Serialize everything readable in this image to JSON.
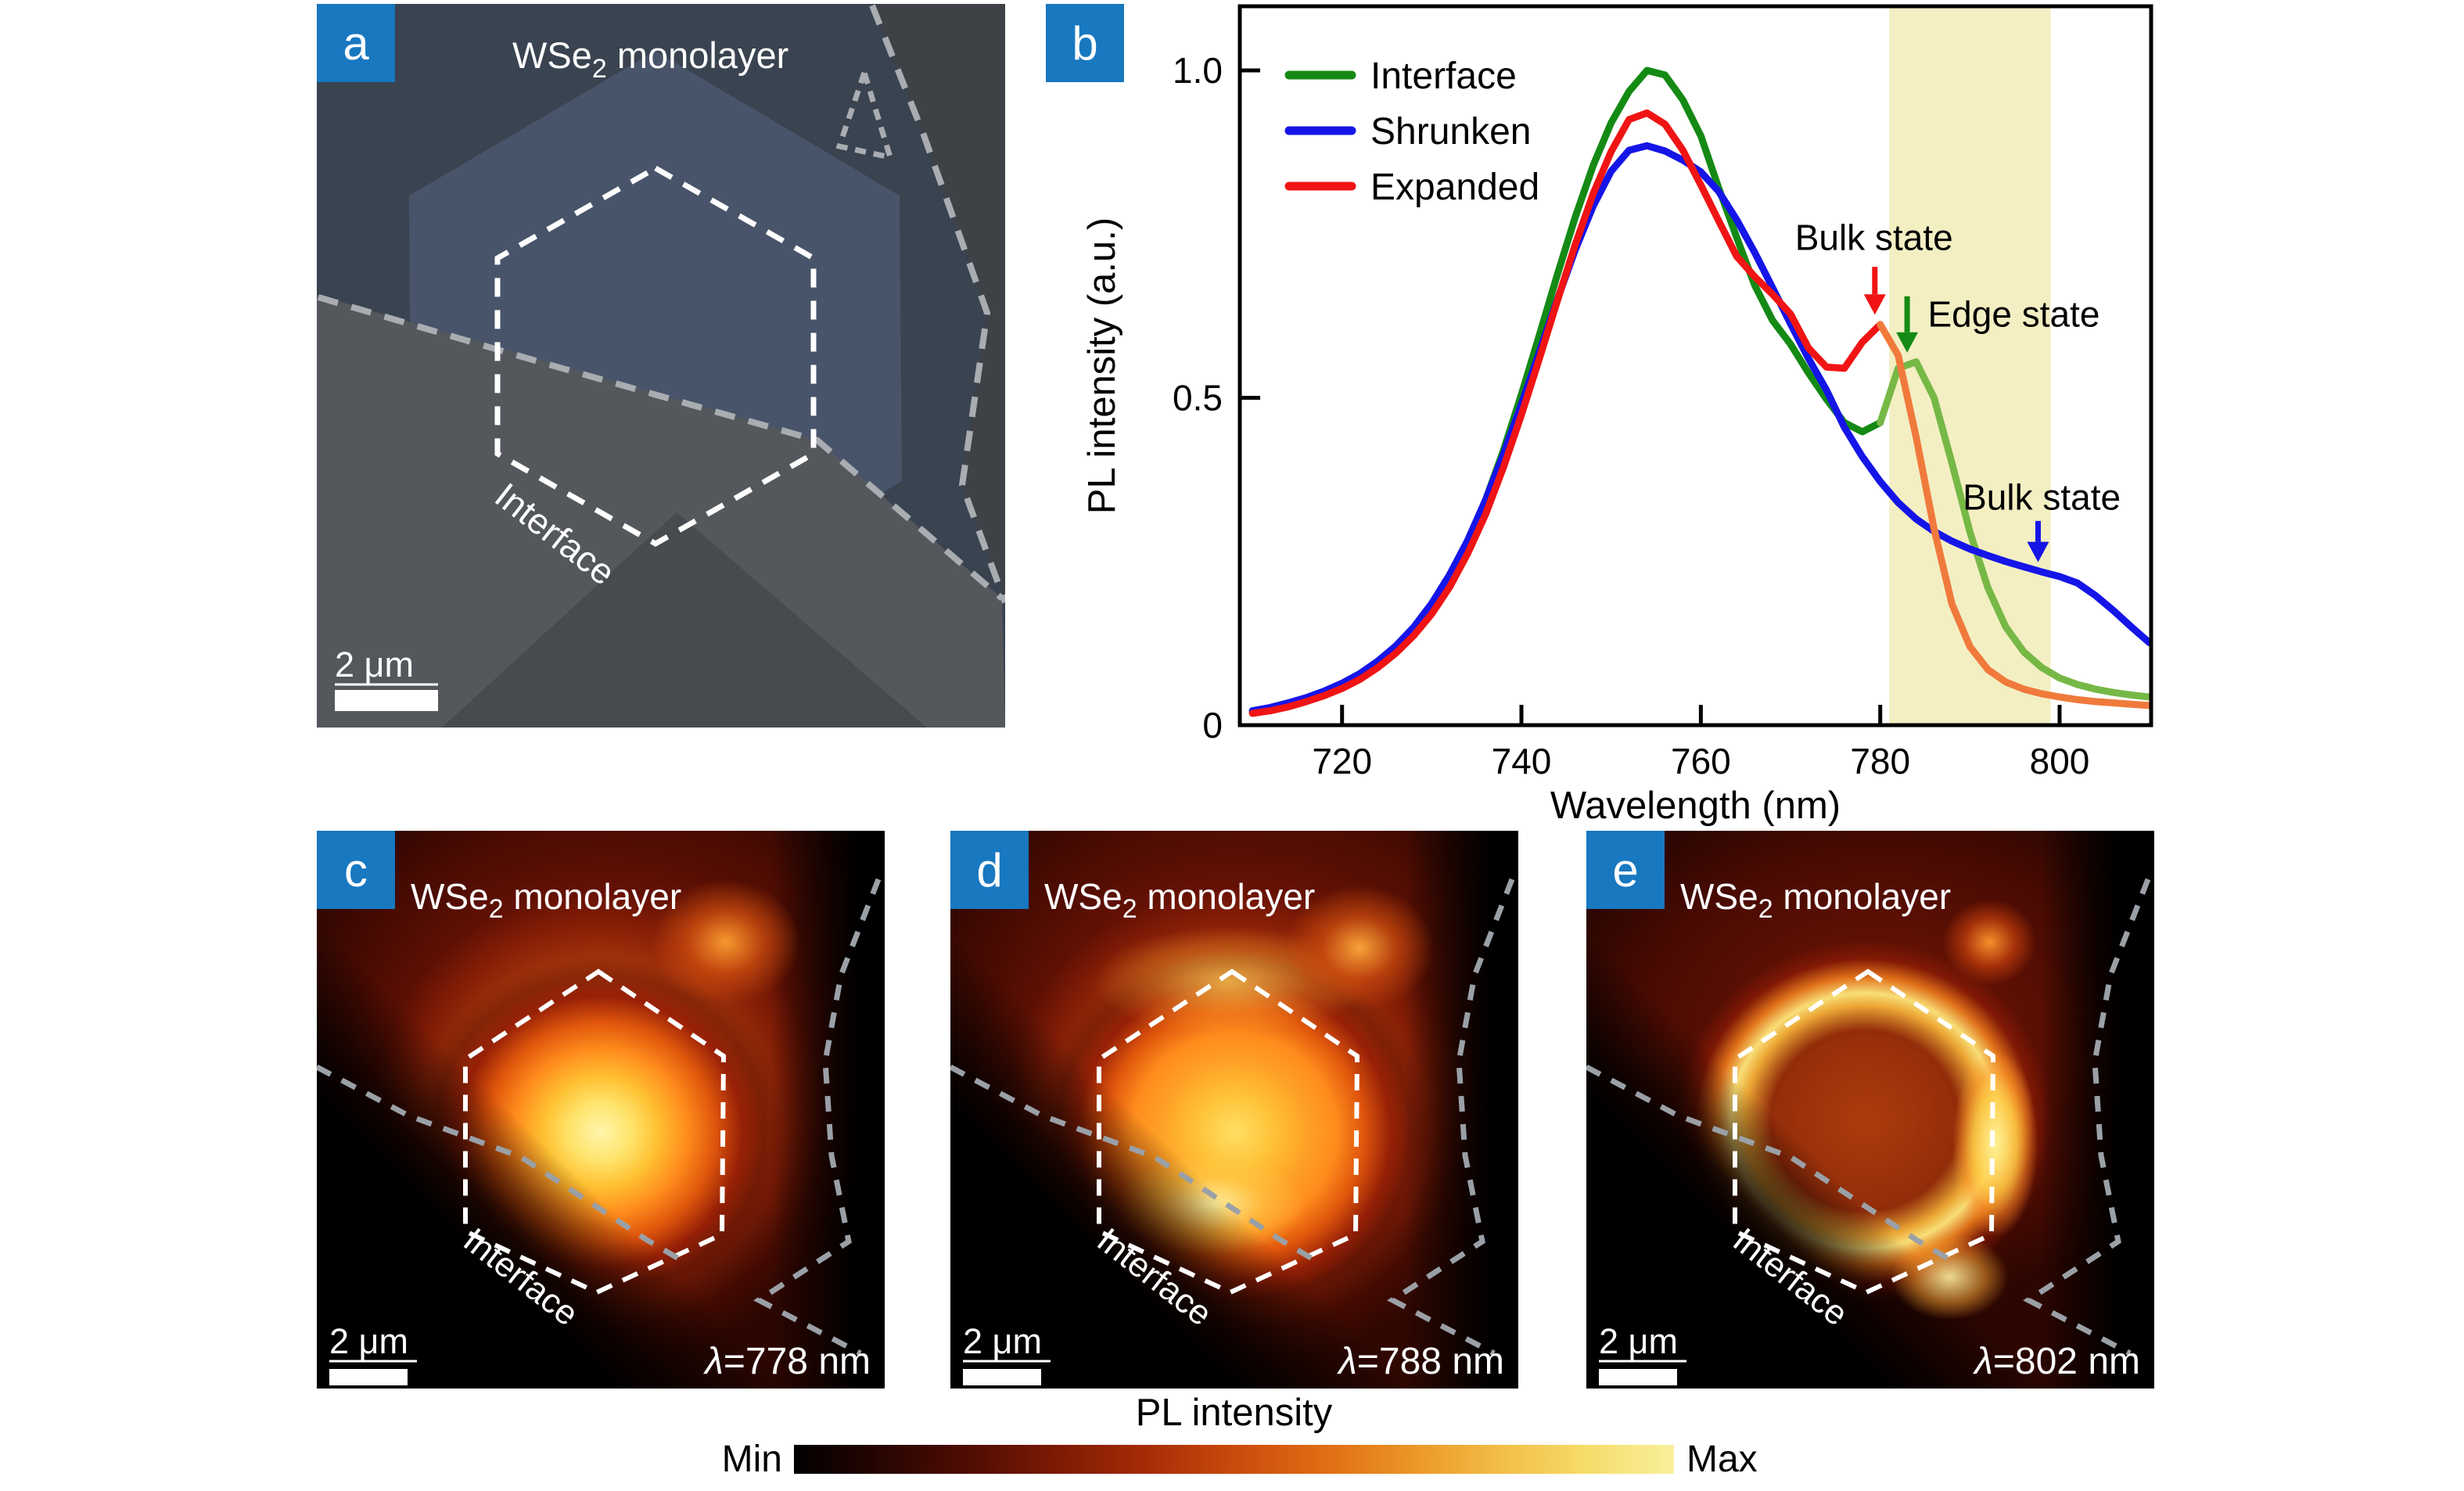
{
  "panels": {
    "a": {
      "label": "a"
    },
    "b": {
      "label": "b"
    },
    "c": {
      "label": "c",
      "lambda_symbol": "λ",
      "lambda_rest": "=778 nm"
    },
    "d": {
      "label": "d",
      "lambda_symbol": "λ",
      "lambda_rest": "=788 nm"
    },
    "e": {
      "label": "e",
      "lambda_symbol": "λ",
      "lambda_rest": "=802 nm"
    }
  },
  "shared": {
    "material_prefix": "WSe",
    "material_sub": "2",
    "material_suffix": " monolayer",
    "interface_label": "Interface",
    "scale_bar_label": "2 μm"
  },
  "colorbar": {
    "title": "PL intensity",
    "min_label": "Min",
    "max_label": "Max",
    "gradient": [
      "#000000",
      "#280502",
      "#500d03",
      "#7d1a04",
      "#a62c06",
      "#c94a0c",
      "#e06c14",
      "#eb9526",
      "#f2bd45",
      "#f6dc6a",
      "#f9f09c"
    ]
  },
  "chart_data": {
    "type": "line",
    "panel_label": "b",
    "title": "",
    "xlabel": "Wavelength (nm)",
    "ylabel": "PL intensity (a.u.)",
    "xlim": [
      708.6,
      810.2
    ],
    "ylim": [
      0,
      1.098
    ],
    "xticks": [
      720,
      740,
      760,
      780,
      800
    ],
    "yticks": [
      {
        "v": 0,
        "label": "0"
      },
      {
        "v": 0.5,
        "label": "0.5"
      },
      {
        "v": 1.0,
        "label": "1.0"
      }
    ],
    "grid": false,
    "legend_position": "top-left",
    "highlight_band": {
      "x0": 781,
      "x1": 799,
      "color": "#f3efc3"
    },
    "x": [
      710,
      712,
      714,
      716,
      718,
      720,
      722,
      724,
      726,
      728,
      730,
      732,
      734,
      736,
      738,
      740,
      742,
      744,
      746,
      748,
      750,
      752,
      754,
      756,
      758,
      760,
      762,
      764,
      766,
      768,
      770,
      772,
      774,
      776,
      778,
      780,
      782,
      784,
      786,
      788,
      790,
      792,
      794,
      796,
      798,
      800,
      802,
      804,
      806,
      808,
      810
    ],
    "series": [
      {
        "name": "Interface",
        "color": "#148a14",
        "split_at": 780,
        "color_after_split": "#76b845",
        "values": [
          0.02,
          0.025,
          0.032,
          0.04,
          0.05,
          0.062,
          0.077,
          0.095,
          0.118,
          0.147,
          0.183,
          0.227,
          0.28,
          0.344,
          0.42,
          0.505,
          0.596,
          0.688,
          0.776,
          0.855,
          0.92,
          0.968,
          1.0,
          0.993,
          0.955,
          0.9,
          0.82,
          0.745,
          0.672,
          0.618,
          0.582,
          0.538,
          0.498,
          0.462,
          0.448,
          0.462,
          0.545,
          0.555,
          0.5,
          0.4,
          0.295,
          0.21,
          0.15,
          0.112,
          0.088,
          0.072,
          0.062,
          0.055,
          0.05,
          0.046,
          0.043
        ]
      },
      {
        "name": "Shrunken",
        "color": "#1515e8",
        "values": [
          0.022,
          0.027,
          0.034,
          0.042,
          0.052,
          0.064,
          0.079,
          0.098,
          0.121,
          0.15,
          0.186,
          0.23,
          0.282,
          0.344,
          0.414,
          0.49,
          0.57,
          0.65,
          0.726,
          0.793,
          0.846,
          0.878,
          0.885,
          0.877,
          0.863,
          0.845,
          0.815,
          0.772,
          0.722,
          0.668,
          0.613,
          0.56,
          0.512,
          0.455,
          0.41,
          0.372,
          0.34,
          0.315,
          0.296,
          0.281,
          0.269,
          0.259,
          0.25,
          0.242,
          0.234,
          0.227,
          0.217,
          0.198,
          0.175,
          0.15,
          0.126
        ]
      },
      {
        "name": "Expanded",
        "color": "#f01414",
        "split_at": 780,
        "color_after_split": "#f07a3c",
        "values": [
          0.018,
          0.022,
          0.028,
          0.036,
          0.045,
          0.056,
          0.07,
          0.088,
          0.11,
          0.137,
          0.17,
          0.211,
          0.262,
          0.322,
          0.394,
          0.474,
          0.56,
          0.648,
          0.734,
          0.812,
          0.876,
          0.925,
          0.935,
          0.918,
          0.878,
          0.825,
          0.77,
          0.716,
          0.685,
          0.658,
          0.628,
          0.576,
          0.547,
          0.545,
          0.585,
          0.612,
          0.565,
          0.44,
          0.3,
          0.185,
          0.12,
          0.085,
          0.066,
          0.055,
          0.048,
          0.043,
          0.039,
          0.036,
          0.034,
          0.032,
          0.03
        ]
      }
    ],
    "annotations": [
      {
        "text": "Bulk state",
        "color": "#f01414",
        "text_nm": 779.3,
        "text_v": 0.745,
        "arrow_nm": 779.4,
        "arrow_v_from": 0.7,
        "arrow_v_to": 0.658,
        "anchor": "middle"
      },
      {
        "text": "Edge state",
        "color": "#148a14",
        "text_nm": 785.3,
        "text_v": 0.628,
        "arrow_nm": 783.0,
        "arrow_v_from": 0.655,
        "arrow_v_to": 0.6,
        "anchor": "start"
      },
      {
        "text": "Bulk state",
        "color": "#1515e8",
        "text_nm": 798.0,
        "text_v": 0.348,
        "arrow_nm": 797.6,
        "arrow_v_from": 0.312,
        "arrow_v_to": 0.28,
        "anchor": "middle"
      }
    ]
  }
}
